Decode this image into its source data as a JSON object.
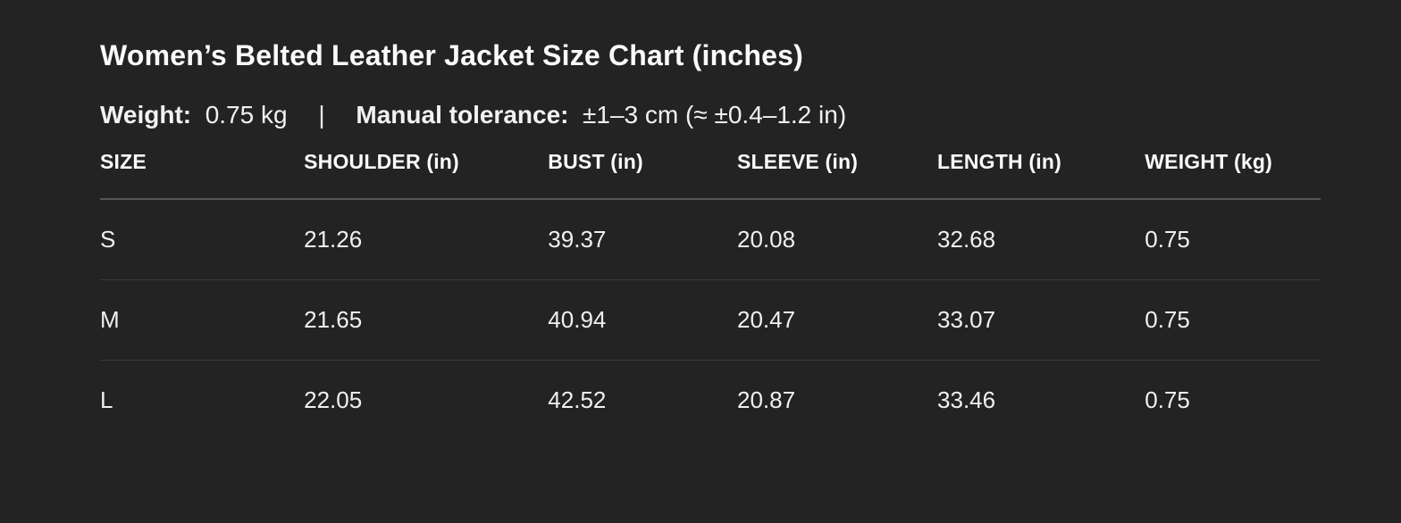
{
  "page": {
    "background_color": "#232323",
    "text_color": "#f5f5f5",
    "header_divider_color": "#575757",
    "row_divider_color": "#3a3a3a"
  },
  "title": "Women’s Belted Leather Jacket Size Chart (inches)",
  "meta": {
    "weight_label": "Weight:",
    "weight_value": "0.75 kg",
    "separator": "|",
    "tolerance_label": "Manual tolerance:",
    "tolerance_value": "±1–3 cm (≈ ±0.4–1.2 in)"
  },
  "chart_data": {
    "type": "table",
    "title": "Women’s Belted Leather Jacket Size Chart (inches)",
    "columns": [
      "SIZE",
      "SHOULDER (in)",
      "BUST (in)",
      "SLEEVE (in)",
      "LENGTH (in)",
      "WEIGHT (kg)"
    ],
    "rows": [
      [
        "S",
        "21.26",
        "39.37",
        "20.08",
        "32.68",
        "0.75"
      ],
      [
        "M",
        "21.65",
        "40.94",
        "20.47",
        "33.07",
        "0.75"
      ],
      [
        "L",
        "22.05",
        "42.52",
        "20.87",
        "33.46",
        "0.75"
      ]
    ],
    "units": {
      "shoulder": "in",
      "bust": "in",
      "sleeve": "in",
      "length": "in",
      "weight": "kg"
    }
  }
}
